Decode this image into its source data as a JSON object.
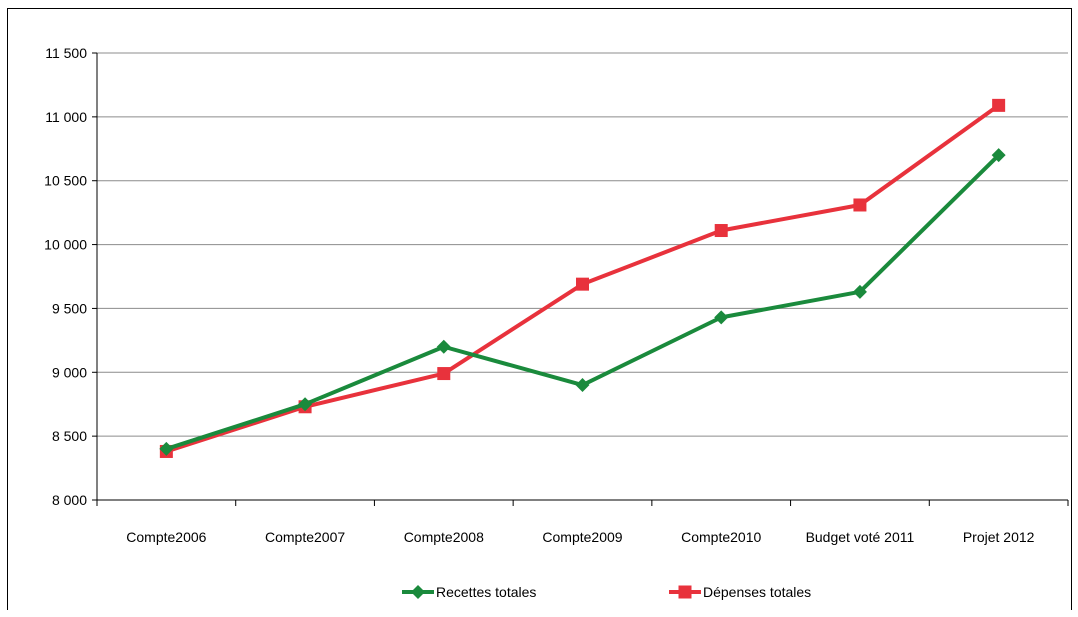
{
  "chart_data": {
    "type": "line",
    "title": "",
    "xlabel": "",
    "ylabel": "",
    "categories": [
      "Compte2006",
      "Compte2007",
      "Compte2008",
      "Compte2009",
      "Compte2010",
      "Budget voté  2011",
      "Projet  2012"
    ],
    "ylim": [
      8000,
      11500
    ],
    "yticks": [
      8000,
      8500,
      9000,
      9500,
      10000,
      10500,
      11000,
      11500
    ],
    "ytick_labels": [
      "8 000",
      "8 500",
      "9 000",
      "9 500",
      "10 000",
      "10 500",
      "11 000",
      "11 500"
    ],
    "grid": true,
    "legend_position": "bottom",
    "series": [
      {
        "name": "Recettes totales",
        "color": "#1a8a3c",
        "marker": "diamond",
        "values": [
          8400,
          8750,
          9200,
          8900,
          9430,
          9630,
          10700
        ]
      },
      {
        "name": "Dépenses totales",
        "color": "#e8323c",
        "marker": "square",
        "values": [
          8380,
          8730,
          8990,
          9690,
          10110,
          10310,
          11090
        ]
      }
    ]
  }
}
